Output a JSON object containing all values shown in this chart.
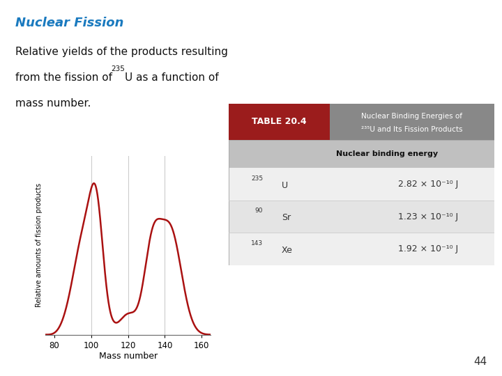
{
  "title": "Nuclear Fission",
  "title_color": "#1a7abf",
  "desc1": "Relative yields of the products resulting",
  "desc2": "from the fission of ",
  "desc2_sup": "235",
  "desc2_end": "U as a function of",
  "desc3": "mass number.",
  "graph_xlabel": "Mass number",
  "graph_ylabel": "Relative amounts of fission products",
  "graph_bg_outer": "#9dbfcf",
  "graph_bg_inner": "#ffffff",
  "graph_line_color": "#aa1111",
  "graph_xticks": [
    80,
    100,
    120,
    140,
    160
  ],
  "graph_xlim": [
    75,
    165
  ],
  "table_header_bg": "#9b1c1c",
  "table_header_text": "TABLE 20.4",
  "table_title_bg": "#888888",
  "table_title_text1": "Nuclear Binding Energies of",
  "table_title_text2": "²³⁵U and Its Fission Products",
  "table_col_header": "Nuclear binding energy",
  "table_rows": [
    [
      "235",
      "U",
      "2.82 × 10⁻¹⁰ J"
    ],
    [
      "90",
      "Sr",
      "1.23 × 10⁻¹⁰ J"
    ],
    [
      "143",
      "Xe",
      "1.92 × 10⁻¹⁰ J"
    ]
  ],
  "page_number": "44",
  "bg_color": "#ffffff"
}
